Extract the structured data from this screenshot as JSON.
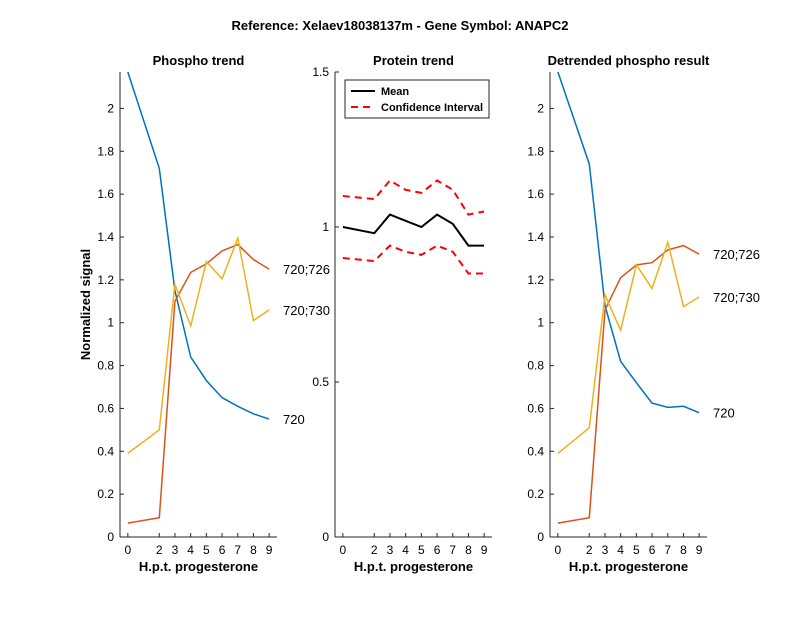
{
  "figure_title": "Reference:  Xelaev18038137m - Gene Symbol:  ANAPC2",
  "colors": {
    "blue": "#0072BD",
    "orange": "#D95319",
    "yellow": "#EDB120",
    "black": "#000000",
    "red": "#FF0000"
  },
  "chart_data": [
    {
      "type": "line",
      "title": "Phospho trend",
      "xlabel": "H.p.t. progesterone",
      "ylabel": "Normalized signal",
      "xlim": [
        -0.5,
        9.5
      ],
      "ylim": [
        0,
        2.17
      ],
      "x": [
        0,
        2,
        3,
        4,
        5,
        6,
        7,
        8,
        9
      ],
      "xticks": [
        0,
        2,
        3,
        4,
        5,
        6,
        7,
        8,
        9
      ],
      "xtick_labels": [
        "0",
        "2",
        "3",
        "4",
        "5",
        "6",
        "7",
        "8",
        "9"
      ],
      "yticks": [
        0,
        0.2,
        0.4,
        0.6,
        0.8,
        1,
        1.2,
        1.4,
        1.6,
        1.8,
        2
      ],
      "ytick_labels": [
        "0",
        "0.2",
        "0.4",
        "0.6",
        "0.8",
        "1",
        "1.2",
        "1.4",
        "1.6",
        "1.8",
        "2"
      ],
      "series": [
        {
          "name": "720",
          "color": "blue",
          "values": [
            2.17,
            1.72,
            1.15,
            0.84,
            0.73,
            0.65,
            0.61,
            0.575,
            0.55
          ]
        },
        {
          "name": "720;726",
          "color": "orange",
          "values": [
            0.065,
            0.09,
            1.1,
            1.235,
            1.275,
            1.335,
            1.365,
            1.295,
            1.25
          ]
        },
        {
          "name": "720;730",
          "color": "yellow",
          "values": [
            0.39,
            0.5,
            1.18,
            0.985,
            1.285,
            1.205,
            1.395,
            1.01,
            1.06
          ]
        }
      ]
    },
    {
      "type": "line",
      "title": "Protein trend",
      "xlabel": "H.p.t. progesterone",
      "ylabel": "",
      "xlim": [
        -0.5,
        9.5
      ],
      "ylim": [
        0,
        1.5
      ],
      "x": [
        0,
        2,
        3,
        4,
        5,
        6,
        7,
        8,
        9
      ],
      "xticks": [
        0,
        2,
        3,
        4,
        5,
        6,
        7,
        8,
        9
      ],
      "xtick_labels": [
        "0",
        "2",
        "3",
        "4",
        "5",
        "6",
        "7",
        "8",
        "9"
      ],
      "yticks": [
        0,
        0.5,
        1,
        1.5
      ],
      "ytick_labels": [
        "0",
        "0.5",
        "1",
        "1.5"
      ],
      "legend": {
        "placement": "top-left",
        "entries": [
          "Mean",
          "Confidence Interval"
        ]
      },
      "series": [
        {
          "name": "Mean",
          "color": "black",
          "dash": false,
          "values": [
            1.0,
            0.98,
            1.04,
            1.02,
            1.0,
            1.04,
            1.01,
            0.94,
            0.94
          ]
        },
        {
          "name": "Confidence Interval",
          "color": "red",
          "dash": true,
          "values": [
            1.1,
            1.09,
            1.15,
            1.12,
            1.11,
            1.15,
            1.12,
            1.04,
            1.05
          ]
        },
        {
          "name": "Confidence Interval",
          "color": "red",
          "dash": true,
          "values": [
            0.9,
            0.89,
            0.94,
            0.92,
            0.91,
            0.94,
            0.92,
            0.85,
            0.85
          ]
        }
      ]
    },
    {
      "type": "line",
      "title": "Detrended phospho result",
      "xlabel": "H.p.t. progesterone",
      "ylabel": "",
      "xlim": [
        -0.5,
        9.5
      ],
      "ylim": [
        0,
        2.17
      ],
      "x": [
        0,
        2,
        3,
        4,
        5,
        6,
        7,
        8,
        9
      ],
      "xticks": [
        0,
        2,
        3,
        4,
        5,
        6,
        7,
        8,
        9
      ],
      "xtick_labels": [
        "0",
        "2",
        "3",
        "4",
        "5",
        "6",
        "7",
        "8",
        "9"
      ],
      "yticks": [
        0,
        0.2,
        0.4,
        0.6,
        0.8,
        1,
        1.2,
        1.4,
        1.6,
        1.8,
        2
      ],
      "ytick_labels": [
        "0",
        "0.2",
        "0.4",
        "0.6",
        "0.8",
        "1",
        "1.2",
        "1.4",
        "1.6",
        "1.8",
        "2"
      ],
      "series": [
        {
          "name": "720",
          "color": "blue",
          "values": [
            2.17,
            1.74,
            1.08,
            0.82,
            0.72,
            0.625,
            0.605,
            0.61,
            0.58
          ]
        },
        {
          "name": "720;726",
          "color": "orange",
          "values": [
            0.065,
            0.09,
            1.06,
            1.21,
            1.27,
            1.28,
            1.34,
            1.36,
            1.32
          ]
        },
        {
          "name": "720;730",
          "color": "yellow",
          "values": [
            0.39,
            0.51,
            1.13,
            0.965,
            1.27,
            1.16,
            1.375,
            1.075,
            1.12
          ]
        }
      ]
    }
  ]
}
